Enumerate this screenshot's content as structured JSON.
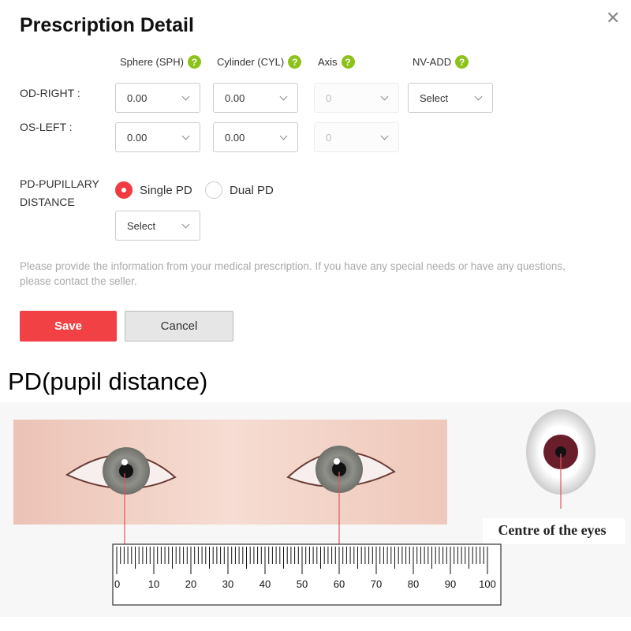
{
  "dialog": {
    "title": "Prescription Detail",
    "close_icon": "close-icon"
  },
  "columns": [
    {
      "label": "Sphere (SPH)",
      "help": "?"
    },
    {
      "label": "Cylinder (CYL)",
      "help": "?"
    },
    {
      "label": "Axis",
      "help": "?"
    },
    {
      "label": "NV-ADD",
      "help": "?"
    }
  ],
  "rows": {
    "od": {
      "label": "OD-RIGHT :",
      "sph": "0.00",
      "cyl": "0.00",
      "axis": "0",
      "nvadd": "Select"
    },
    "os": {
      "label": "OS-LEFT :",
      "sph": "0.00",
      "cyl": "0.00",
      "axis": "0"
    }
  },
  "pd": {
    "label_line1": "PD-PUPILLARY",
    "label_line2": "DISTANCE",
    "options": [
      {
        "label": "Single PD",
        "selected": true
      },
      {
        "label": "Dual PD",
        "selected": false
      }
    ],
    "select": "Select"
  },
  "note": "Please provide the information from your medical prescription. If you have any special needs or have any questions, please contact the seller.",
  "buttons": {
    "save": "Save",
    "cancel": "Cancel"
  },
  "colors": {
    "accent": "#f24145",
    "help": "#8cc21a"
  },
  "illustration": {
    "heading": "PD(pupil distance)",
    "eye_label": "Centre of the eyes",
    "ruler_labels": [
      "0",
      "10",
      "20",
      "30",
      "40",
      "50",
      "60",
      "70",
      "80",
      "90",
      "100"
    ]
  }
}
